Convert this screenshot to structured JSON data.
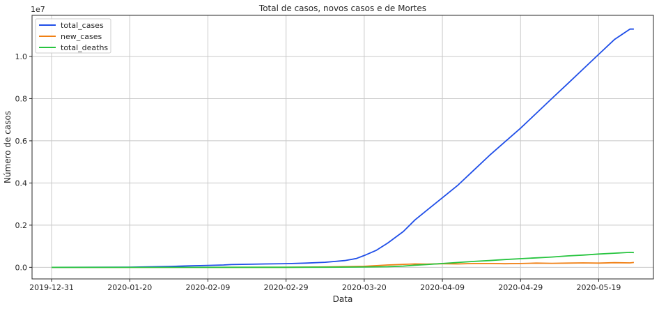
{
  "chart_data": {
    "type": "line",
    "title": "Total de casos, novos casos e de Mortes",
    "xlabel": "Data",
    "ylabel": "Número de casos",
    "y_offset_label": "1e7",
    "x_range": [
      "2019-12-26",
      "2020-06-02"
    ],
    "ylim": [
      -550000,
      11950000
    ],
    "grid": true,
    "legend_position": "top-left",
    "x_ticks": [
      {
        "date": "2019-12-31",
        "label": "2019-12-31"
      },
      {
        "date": "2020-01-20",
        "label": "2020-01-20"
      },
      {
        "date": "2020-02-09",
        "label": "2020-02-09"
      },
      {
        "date": "2020-02-29",
        "label": "2020-02-29"
      },
      {
        "date": "2020-03-20",
        "label": "2020-03-20"
      },
      {
        "date": "2020-04-09",
        "label": "2020-04-09"
      },
      {
        "date": "2020-04-29",
        "label": "2020-04-29"
      },
      {
        "date": "2020-05-19",
        "label": "2020-05-19"
      }
    ],
    "y_ticks": [
      {
        "value": 0,
        "label": "0.0"
      },
      {
        "value": 2000000,
        "label": "0.2"
      },
      {
        "value": 4000000,
        "label": "0.4"
      },
      {
        "value": 6000000,
        "label": "0.6"
      },
      {
        "value": 8000000,
        "label": "0.8"
      },
      {
        "value": 10000000,
        "label": "1.0"
      }
    ],
    "series": [
      {
        "name": "total_cases",
        "color": "#1f4ee8",
        "x": [
          "2019-12-31",
          "2020-01-20",
          "2020-01-30",
          "2020-02-04",
          "2020-02-09",
          "2020-02-13",
          "2020-02-15",
          "2020-02-19",
          "2020-02-24",
          "2020-02-29",
          "2020-03-05",
          "2020-03-10",
          "2020-03-15",
          "2020-03-18",
          "2020-03-20",
          "2020-03-23",
          "2020-03-26",
          "2020-03-30",
          "2020-04-02",
          "2020-04-05",
          "2020-04-09",
          "2020-04-13",
          "2020-04-17",
          "2020-04-21",
          "2020-04-25",
          "2020-04-29",
          "2020-05-03",
          "2020-05-07",
          "2020-05-11",
          "2020-05-15",
          "2020-05-19",
          "2020-05-23",
          "2020-05-27",
          "2020-05-28"
        ],
        "values": [
          0,
          10000,
          40000,
          70000,
          90000,
          110000,
          130000,
          145000,
          160000,
          175000,
          200000,
          240000,
          320000,
          420000,
          560000,
          800000,
          1150000,
          1700000,
          2250000,
          2700000,
          3300000,
          3900000,
          4600000,
          5300000,
          5950000,
          6600000,
          7300000,
          8000000,
          8700000,
          9400000,
          10100000,
          10800000,
          11300000,
          11300000
        ]
      },
      {
        "name": "new_cases",
        "color": "#f07f13",
        "x": [
          "2019-12-31",
          "2020-02-29",
          "2020-03-10",
          "2020-03-20",
          "2020-03-26",
          "2020-03-30",
          "2020-04-02",
          "2020-04-05",
          "2020-04-09",
          "2020-04-13",
          "2020-04-17",
          "2020-04-21",
          "2020-04-25",
          "2020-04-29",
          "2020-05-03",
          "2020-05-07",
          "2020-05-11",
          "2020-05-15",
          "2020-05-19",
          "2020-05-23",
          "2020-05-27",
          "2020-05-28"
        ],
        "values": [
          0,
          2000,
          20000,
          50000,
          110000,
          140000,
          160000,
          150000,
          170000,
          160000,
          180000,
          180000,
          170000,
          180000,
          200000,
          190000,
          200000,
          210000,
          200000,
          220000,
          210000,
          230000
        ]
      },
      {
        "name": "total_deaths",
        "color": "#27c43f",
        "x": [
          "2019-12-31",
          "2020-02-29",
          "2020-03-10",
          "2020-03-20",
          "2020-03-26",
          "2020-03-30",
          "2020-04-02",
          "2020-04-05",
          "2020-04-09",
          "2020-04-13",
          "2020-04-17",
          "2020-04-21",
          "2020-04-25",
          "2020-04-29",
          "2020-05-03",
          "2020-05-07",
          "2020-05-11",
          "2020-05-15",
          "2020-05-19",
          "2020-05-23",
          "2020-05-27",
          "2020-05-28"
        ],
        "values": [
          0,
          3000,
          6000,
          15000,
          30000,
          60000,
          100000,
          130000,
          180000,
          230000,
          280000,
          320000,
          370000,
          410000,
          450000,
          490000,
          540000,
          580000,
          630000,
          670000,
          710000,
          700000
        ]
      }
    ]
  }
}
